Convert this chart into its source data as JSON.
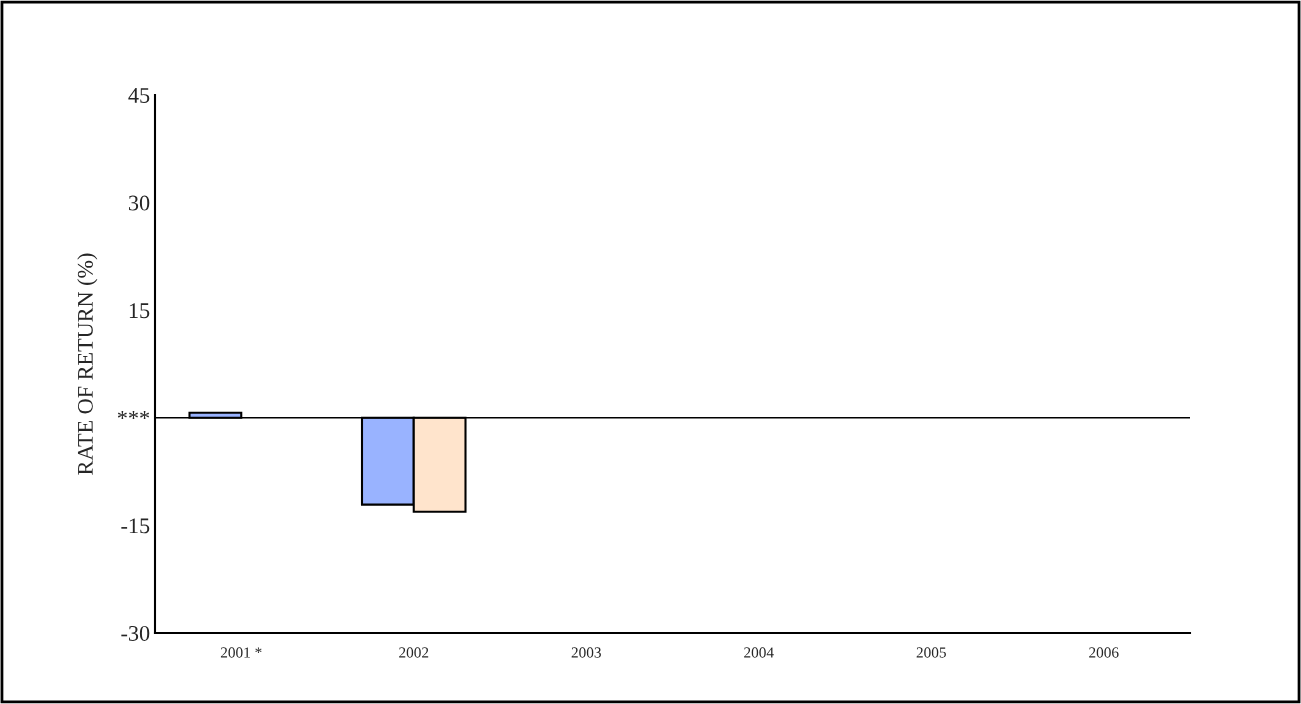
{
  "chart_data": {
    "type": "bar",
    "ylabel": "RATE OF RETURN (%)",
    "categories": [
      "2001 *",
      "2002",
      "2003",
      "2004",
      "2005",
      "2006"
    ],
    "series": [
      {
        "color": "#99b3ff",
        "values": [
          0.7,
          -12.1,
          null,
          null,
          null,
          null
        ]
      },
      {
        "color": "#ffe4cc",
        "values": [
          null,
          -13.1,
          null,
          null,
          null,
          null
        ]
      }
    ],
    "ylim": [
      -30,
      45
    ],
    "yticks": [
      -30,
      -15,
      {
        "value": 0,
        "label": "***"
      },
      15,
      30,
      45
    ],
    "ref_lines": [
      {
        "axis": "y",
        "value": 0,
        "color": "#000000"
      }
    ],
    "grid": false,
    "legend": false
  }
}
